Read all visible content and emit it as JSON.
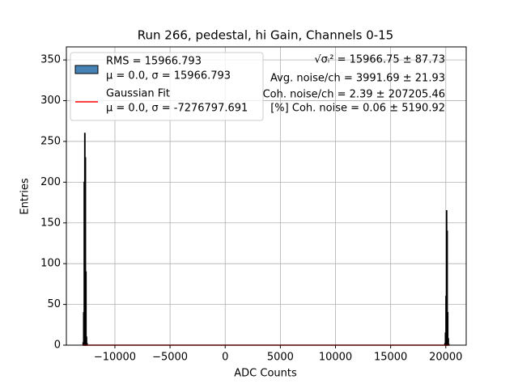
{
  "chart_data": {
    "type": "histogram",
    "title": "Run 266, pedestal, hi Gain, Channels 0-15",
    "xlabel": "ADC Counts",
    "ylabel": "Entries",
    "xlim": [
      -14400,
      21850
    ],
    "ylim": [
      0,
      366
    ],
    "xticks": [
      {
        "value": -10000,
        "label": "−10000"
      },
      {
        "value": -5000,
        "label": "−5000"
      },
      0,
      5000,
      10000,
      15000,
      20000
    ],
    "yticks": [
      0,
      50,
      100,
      150,
      200,
      250,
      300,
      350
    ],
    "grid": true,
    "legend": "upper left",
    "series": [
      {
        "type": "histogram",
        "name": [
          "RMS = 15966.793",
          "μ = 0.0, σ = 15966.793"
        ],
        "color": "#4682b4",
        "edgecolor": "#000000",
        "bins": [
          -12900,
          -12850,
          -12800,
          -12750,
          -12700,
          -12650,
          -12600,
          -12550,
          -12500,
          19900,
          19950,
          20000,
          20050,
          20100,
          20150,
          20200,
          20250,
          20300
        ],
        "values": [
          3,
          40,
          200,
          260,
          230,
          90,
          10,
          2,
          0,
          2,
          15,
          60,
          165,
          140,
          40,
          8,
          1
        ]
      },
      {
        "type": "line",
        "name": [
          "Gaussian Fit",
          "μ = 0.0, σ = -7276797.691"
        ],
        "color": "#ff0000",
        "x": [
          -12900,
          20300
        ],
        "values": [
          0,
          0
        ]
      }
    ],
    "annotations": [
      "√σᵢ² = 15966.75 ± 87.73",
      "Avg. noise/ch = 3991.69 ± 21.93",
      "Coh. noise/ch = 2.39 ± 207205.46",
      "[%] Coh. noise = 0.06 ± 5190.92"
    ]
  }
}
